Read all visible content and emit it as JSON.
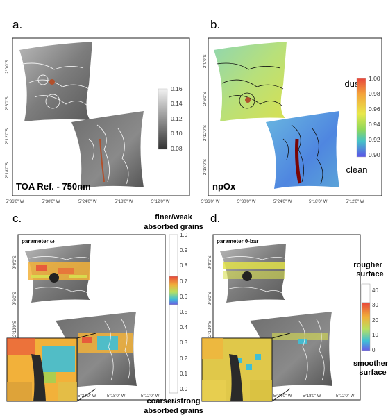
{
  "panels": {
    "a": {
      "letter": "a.",
      "caption": "TOA Ref. - 750nm"
    },
    "b": {
      "letter": "b.",
      "caption": "npOx"
    },
    "c": {
      "letter": "c.",
      "param_label": "parameter ω"
    },
    "d": {
      "letter": "d.",
      "param_label": "parameter θ-bar"
    }
  },
  "axes": {
    "lat_ticks": [
      "2°0'0\"S",
      "2°6'0\"S",
      "2°12'0\"S",
      "2°18'0\"S"
    ],
    "lon_ticks_ab": [
      "5°36'0\" W",
      "5°30'0\" W",
      "5°24'0\" W",
      "5°18'0\" W",
      "5°12'0\" W"
    ],
    "lon_ticks_cd": [
      "5°24'0\" W",
      "5°18'0\" W",
      "5°12'0\" W"
    ]
  },
  "colorbars": {
    "a": {
      "ticks": [
        "0.16",
        "0.14",
        "0.12",
        "0.10",
        "0.08"
      ]
    },
    "b": {
      "top_label": "dusty",
      "bottom_label": "clean",
      "ticks": [
        "1.00",
        "0.98",
        "0.96",
        "0.94",
        "0.92",
        "0.90"
      ]
    },
    "c": {
      "top_label_1": "finer/weak",
      "top_label_2": "absorbed grains",
      "bottom_label_1": "coarser/strong",
      "bottom_label_2": "absorbed grains",
      "ticks": [
        "1.0",
        "0.9",
        "0.8",
        "0.7",
        "0.6",
        "0.5",
        "0.4",
        "0.3",
        "0.2",
        "0.1",
        "0.0"
      ]
    },
    "d": {
      "top_label_1": "rougher",
      "top_label_2": "surface",
      "bottom_label_1": "smoother",
      "bottom_label_2": "surface",
      "ticks": [
        "40",
        "30",
        "20",
        "10",
        "0"
      ]
    }
  },
  "colors": {
    "rust": "#b2502c",
    "turbo_low": "#30123b",
    "turbo_high": "#7a0403",
    "gray_dark": "#3a3a3a",
    "gray_light": "#e6e6e6"
  }
}
